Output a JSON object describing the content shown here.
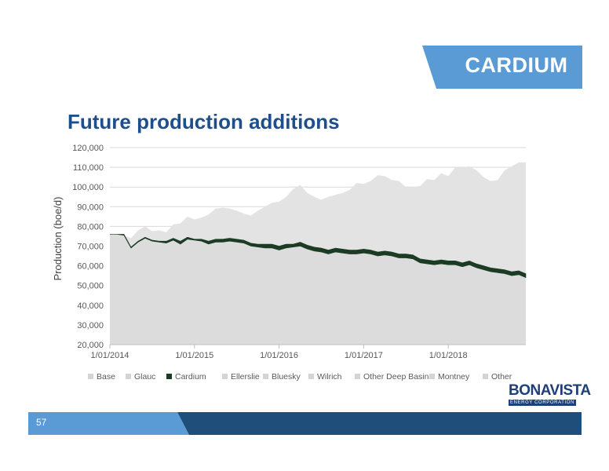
{
  "section": {
    "title": "CARDIUM"
  },
  "page": {
    "title": "Future production additions",
    "number": "57"
  },
  "colors": {
    "accent_blue": "#5b9bd5",
    "navy": "#1f4e7a",
    "title_blue": "#1f4e8c",
    "cardium": "#1b3b24",
    "area_grey": "#dcdcdc"
  },
  "logo": {
    "name": "BONAVISTA",
    "tagline": "ENERGY CORPORATION"
  },
  "chart_data": {
    "type": "area",
    "ylabel": "Production (boe/d)",
    "ylim": [
      20000,
      120000
    ],
    "yticks": [
      "20,000",
      "30,000",
      "40,000",
      "50,000",
      "60,000",
      "70,000",
      "80,000",
      "90,000",
      "100,000",
      "110,000",
      "120,000"
    ],
    "xticks": [
      "1/01/2014",
      "1/01/2015",
      "1/01/2016",
      "1/01/2017",
      "1/01/2018"
    ],
    "x_start": "2014-01",
    "x_end": "2018-12",
    "legend": [
      "Base",
      "Glauc",
      "Cardium",
      "Ellerslie",
      "Bluesky",
      "Wilrich",
      "Other Deep Basin",
      "Montney",
      "Other"
    ],
    "legend_position": "bottom",
    "series": [
      {
        "name": "Base (upper edge)",
        "values": [
          76000,
          76000,
          75500,
          69000,
          72000,
          74000,
          72500,
          72000,
          71500,
          73000,
          71000,
          73500,
          73000,
          72500,
          71000,
          72000,
          72000,
          72500,
          72000,
          71500,
          70000,
          69500,
          69000,
          69000,
          68000,
          69000,
          69500,
          70000,
          68500,
          67500,
          67000,
          66000,
          67000,
          66500,
          66000,
          66000,
          66500,
          66000,
          65000,
          65500,
          65000,
          64000,
          64000,
          63500,
          61500,
          61000,
          60500,
          61000,
          60500,
          60500,
          59500,
          60500,
          59000,
          58000,
          57000,
          56500,
          56000,
          55000,
          55500,
          54000
        ]
      },
      {
        "name": "Cardium (upper edge)",
        "values": [
          76000,
          76000,
          76000,
          69500,
          72500,
          74500,
          73000,
          72500,
          72500,
          74000,
          72500,
          74500,
          73500,
          73500,
          72500,
          73500,
          73500,
          74000,
          73500,
          73000,
          71500,
          71000,
          71000,
          71000,
          70000,
          71000,
          71000,
          72000,
          70500,
          69500,
          69000,
          68000,
          69000,
          68500,
          68000,
          68000,
          68500,
          68000,
          67000,
          67500,
          67000,
          66000,
          66000,
          65500,
          63500,
          63000,
          62500,
          63000,
          62500,
          62500,
          61500,
          62500,
          61000,
          60000,
          59000,
          58500,
          58000,
          57000,
          57500,
          56000
        ]
      },
      {
        "name": "Total (upper edge)",
        "values": [
          76000,
          76000,
          75500,
          74000,
          78000,
          80000,
          77500,
          78000,
          77000,
          81000,
          81500,
          85000,
          83500,
          84500,
          86000,
          89000,
          89500,
          89000,
          88000,
          86500,
          85500,
          88000,
          90000,
          92000,
          92500,
          95000,
          99000,
          101000,
          97000,
          95000,
          93500,
          95000,
          96000,
          97000,
          98500,
          102000,
          101500,
          103000,
          106000,
          105500,
          103500,
          103000,
          100000,
          100000,
          100500,
          104000,
          103500,
          107000,
          105500,
          110000,
          110000,
          110500,
          108500,
          105000,
          103000,
          103500,
          108500,
          110500,
          112500,
          112500
        ]
      }
    ]
  }
}
